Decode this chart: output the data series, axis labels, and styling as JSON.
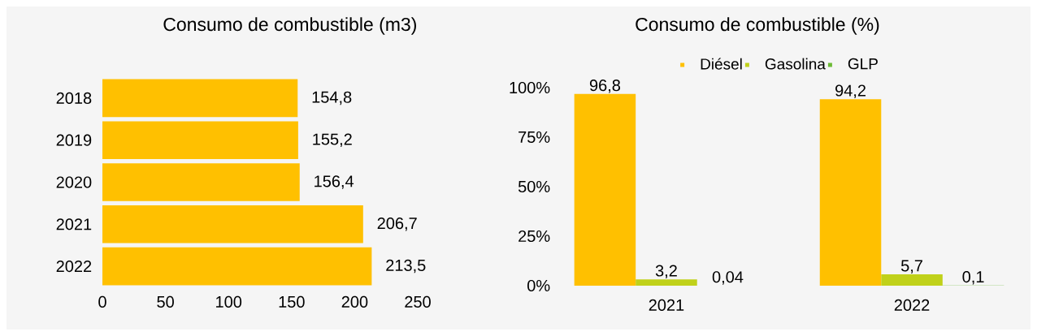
{
  "chart_data": [
    {
      "type": "bar",
      "orientation": "horizontal",
      "title": "Consumo de combustible (m3)",
      "categories": [
        "2018",
        "2019",
        "2020",
        "2021",
        "2022"
      ],
      "values": [
        154.8,
        155.2,
        156.4,
        206.7,
        213.5
      ],
      "color": "#ffc000",
      "value_labels": [
        "154,8",
        "155,2",
        "156,4",
        "206,7",
        "213,5"
      ],
      "xlim": [
        0,
        250
      ],
      "xticks": [
        0,
        50,
        100,
        150,
        200,
        250
      ]
    },
    {
      "type": "bar",
      "title": "Consumo de combustible (%)",
      "categories": [
        "2021",
        "2022"
      ],
      "series": [
        {
          "name": "Diésel",
          "color": "#ffc000",
          "values": [
            96.8,
            94.2
          ],
          "value_labels": [
            "96,8",
            "94,2"
          ]
        },
        {
          "name": "Gasolina",
          "color": "#c0d11a",
          "values": [
            3.2,
            5.7
          ],
          "value_labels": [
            "3,2",
            "5,7"
          ]
        },
        {
          "name": "GLP",
          "color": "#6cba35",
          "values": [
            0.04,
            0.1
          ],
          "value_labels": [
            "0,04",
            "0,1"
          ]
        }
      ],
      "ylim": [
        0,
        100
      ],
      "yticks": [
        {
          "value": 0,
          "label": "0%"
        },
        {
          "value": 25,
          "label": "25%"
        },
        {
          "value": 50,
          "label": "50%"
        },
        {
          "value": 75,
          "label": "75%"
        },
        {
          "value": 100,
          "label": "100%"
        }
      ],
      "legend": "top"
    }
  ]
}
